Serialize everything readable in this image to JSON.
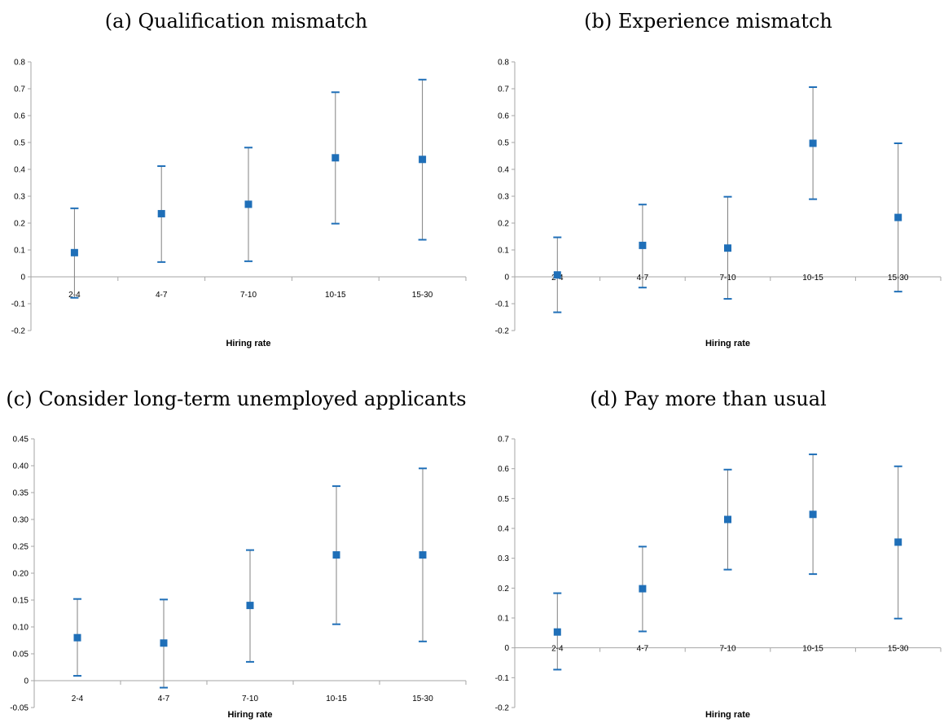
{
  "chart_data": [
    {
      "type": "scatter",
      "title": "(a) Qualification mismatch",
      "xlabel": "Hiring rate",
      "ylabel": "",
      "categories": [
        "2-4",
        "4-7",
        "7-10",
        "10-15",
        "15-30"
      ],
      "ylim": [
        -0.2,
        0.8
      ],
      "ytick_step": 0.1,
      "y_decimals": 1,
      "x_labels_at_zero": false,
      "series": [
        {
          "values": [
            0.09,
            0.235,
            0.27,
            0.443,
            0.437
          ],
          "lower": [
            -0.078,
            0.055,
            0.058,
            0.198,
            0.138
          ],
          "upper": [
            0.255,
            0.412,
            0.481,
            0.687,
            0.734
          ]
        }
      ],
      "grid": false,
      "legend": "none",
      "colors": {
        "marker": "#1f6fb8",
        "whisker": "#808080",
        "cap": "#1f6fb8",
        "axis": "#a6a6a6"
      }
    },
    {
      "type": "scatter",
      "title": "(b) Experience mismatch",
      "xlabel": "Hiring rate",
      "ylabel": "",
      "categories": [
        "2-4",
        "4-7",
        "7-10",
        "10-15",
        "15-30"
      ],
      "ylim": [
        -0.2,
        0.8
      ],
      "ytick_step": 0.1,
      "y_decimals": 1,
      "x_labels_at_zero": true,
      "series": [
        {
          "values": [
            0.007,
            0.117,
            0.107,
            0.497,
            0.221
          ],
          "lower": [
            -0.132,
            -0.04,
            -0.082,
            0.289,
            -0.055
          ],
          "upper": [
            0.147,
            0.269,
            0.298,
            0.706,
            0.497
          ]
        }
      ],
      "grid": false,
      "legend": "none",
      "colors": {
        "marker": "#1f6fb8",
        "whisker": "#808080",
        "cap": "#1f6fb8",
        "axis": "#a6a6a6"
      }
    },
    {
      "type": "scatter",
      "title": "(c) Consider long-term unemployed applicants",
      "xlabel": "Hiring rate",
      "ylabel": "",
      "categories": [
        "2-4",
        "4-7",
        "7-10",
        "10-15",
        "15-30"
      ],
      "ylim": [
        -0.05,
        0.45
      ],
      "ytick_step": 0.05,
      "y_decimals": 2,
      "x_labels_at_zero": false,
      "series": [
        {
          "values": [
            0.08,
            0.07,
            0.14,
            0.234,
            0.234
          ],
          "lower": [
            0.009,
            -0.013,
            0.035,
            0.105,
            0.073
          ],
          "upper": [
            0.152,
            0.151,
            0.243,
            0.362,
            0.395
          ]
        }
      ],
      "grid": false,
      "legend": "none",
      "colors": {
        "marker": "#1f6fb8",
        "whisker": "#808080",
        "cap": "#1f6fb8",
        "axis": "#a6a6a6"
      }
    },
    {
      "type": "scatter",
      "title": "(d) Pay more than usual",
      "xlabel": "Hiring rate",
      "ylabel": "",
      "categories": [
        "2-4",
        "4-7",
        "7-10",
        "10-15",
        "15-30"
      ],
      "ylim": [
        -0.2,
        0.7
      ],
      "ytick_step": 0.1,
      "y_decimals": 1,
      "x_labels_at_zero": true,
      "series": [
        {
          "values": [
            0.053,
            0.198,
            0.43,
            0.447,
            0.354
          ],
          "lower": [
            -0.073,
            0.055,
            0.262,
            0.247,
            0.098
          ],
          "upper": [
            0.183,
            0.339,
            0.597,
            0.648,
            0.608
          ]
        }
      ],
      "grid": false,
      "legend": "none",
      "colors": {
        "marker": "#1f6fb8",
        "whisker": "#808080",
        "cap": "#1f6fb8",
        "axis": "#a6a6a6"
      }
    }
  ]
}
